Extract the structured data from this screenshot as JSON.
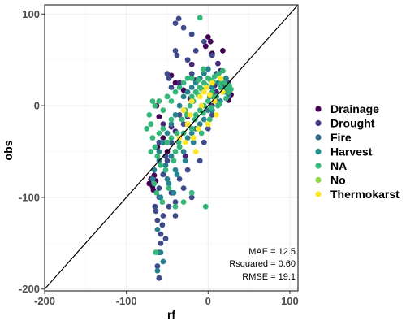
{
  "chart_data": {
    "type": "scatter",
    "xlabel": "rf",
    "ylabel": "obs",
    "xlim": [
      -200,
      110
    ],
    "ylim": [
      -202,
      110
    ],
    "x_ticks": [
      -200,
      -100,
      0,
      100
    ],
    "y_ticks": [
      -200,
      -100,
      0,
      100
    ],
    "grid": true,
    "legend_placement": "right",
    "reference_line": {
      "type": "identity",
      "slope": 1,
      "intercept": 0
    },
    "statistics": [
      "MAE = 12.5",
      "Rsquared = 0.60",
      "RMSE = 19.1"
    ],
    "series": [
      {
        "name": "Drainage",
        "color": "#440154",
        "points": [
          [
            -70,
            -80
          ],
          [
            -72,
            -85
          ],
          [
            -68,
            -88
          ],
          [
            -66,
            -76
          ],
          [
            -64,
            -82
          ],
          [
            -67,
            -92
          ],
          [
            -63,
            0
          ],
          [
            -60,
            -12
          ],
          [
            0,
            75
          ],
          [
            -3,
            65
          ],
          [
            5,
            57
          ],
          [
            3,
            70
          ],
          [
            18,
            60
          ],
          [
            28,
            12
          ],
          [
            25,
            6
          ],
          [
            -62,
            -45
          ],
          [
            -55,
            -35
          ],
          [
            -50,
            -50
          ],
          [
            -40,
            25
          ],
          [
            -45,
            33
          ],
          [
            -30,
            17
          ]
        ]
      },
      {
        "name": "Drainage",
        "color": "#482576",
        "points": [
          [
            -45,
            -23
          ],
          [
            -40,
            -28
          ],
          [
            -35,
            25
          ],
          [
            -20,
            45
          ],
          [
            -15,
            28
          ],
          [
            10,
            15
          ],
          [
            12,
            46
          ],
          [
            15,
            38
          ],
          [
            8,
            22
          ],
          [
            -30,
            -5
          ],
          [
            -28,
            -55
          ],
          [
            5,
            0
          ],
          [
            -25,
            -12
          ],
          [
            20,
            25
          ],
          [
            -55,
            -20
          ],
          [
            -22,
            8
          ]
        ]
      },
      {
        "name": "Fire",
        "color": "#3e4a89",
        "points": [
          [
            -60,
            -40
          ],
          [
            -50,
            35
          ],
          [
            -40,
            60
          ],
          [
            -38,
            55
          ],
          [
            -30,
            85
          ],
          [
            -25,
            50
          ],
          [
            -20,
            35
          ],
          [
            -15,
            60
          ],
          [
            0,
            40
          ],
          [
            5,
            55
          ],
          [
            10,
            35
          ],
          [
            15,
            30
          ],
          [
            -10,
            20
          ],
          [
            -35,
            -10
          ],
          [
            -30,
            -20
          ],
          [
            -45,
            -40
          ],
          [
            -50,
            -60
          ],
          [
            -55,
            -75
          ],
          [
            -60,
            -90
          ],
          [
            -65,
            -110
          ],
          [
            -62,
            -125
          ],
          [
            -58,
            -140
          ],
          [
            -60,
            -160
          ],
          [
            -62,
            -175
          ],
          [
            -60,
            -188
          ],
          [
            -58,
            -150
          ],
          [
            -55,
            -120
          ],
          [
            -45,
            -95
          ],
          [
            -40,
            -105
          ],
          [
            -35,
            -80
          ],
          [
            -30,
            -90
          ],
          [
            -25,
            -70
          ],
          [
            -20,
            -100
          ],
          [
            -10,
            -60
          ],
          [
            -5,
            -40
          ],
          [
            0,
            -25
          ],
          [
            5,
            -10
          ],
          [
            10,
            5
          ],
          [
            20,
            20
          ],
          [
            25,
            25
          ],
          [
            -5,
            70
          ],
          [
            -15,
            15
          ],
          [
            -40,
            90
          ],
          [
            -36,
            95
          ],
          [
            -20,
            78
          ],
          [
            -45,
            20
          ],
          [
            -48,
            30
          ],
          [
            -52,
            -55
          ],
          [
            -56,
            -130
          ],
          [
            -60,
            -100
          ],
          [
            -64,
            -115
          ],
          [
            -52,
            -145
          ],
          [
            -48,
            -110
          ],
          [
            -40,
            -120
          ]
        ]
      },
      {
        "name": "Harvest",
        "color": "#26828e",
        "points": [
          [
            -68,
            -80
          ],
          [
            -66,
            -70
          ],
          [
            -60,
            -60
          ],
          [
            -55,
            -40
          ],
          [
            -50,
            -30
          ],
          [
            -45,
            -20
          ],
          [
            -40,
            -10
          ],
          [
            -35,
            0
          ],
          [
            -30,
            10
          ],
          [
            -25,
            15
          ],
          [
            -20,
            20
          ],
          [
            -15,
            25
          ],
          [
            -10,
            30
          ],
          [
            -5,
            35
          ],
          [
            0,
            40
          ],
          [
            5,
            20
          ],
          [
            10,
            10
          ],
          [
            15,
            5
          ],
          [
            20,
            15
          ],
          [
            25,
            12
          ],
          [
            -20,
            -30
          ],
          [
            -10,
            -20
          ],
          [
            0,
            -5
          ],
          [
            -30,
            -50
          ],
          [
            -40,
            -70
          ],
          [
            -50,
            -80
          ],
          [
            -58,
            -100
          ],
          [
            -52,
            -65
          ],
          [
            -45,
            -55
          ],
          [
            -35,
            -45
          ],
          [
            -25,
            -35
          ],
          [
            -15,
            -25
          ],
          [
            -5,
            -15
          ],
          [
            5,
            -5
          ],
          [
            -60,
            -50
          ],
          [
            -48,
            -85
          ],
          [
            -42,
            -95
          ],
          [
            -38,
            -75
          ],
          [
            -28,
            -60
          ],
          [
            -18,
            -40
          ],
          [
            -8,
            0
          ],
          [
            2,
            10
          ],
          [
            12,
            25
          ],
          [
            22,
            30
          ],
          [
            -62,
            -135
          ],
          [
            -58,
            -160
          ],
          [
            -55,
            -170
          ],
          [
            -62,
            -180
          ]
        ]
      },
      {
        "name": "NA",
        "color": "#35b779",
        "points": [
          [
            -70,
            -20
          ],
          [
            -68,
            -35
          ],
          [
            -65,
            0
          ],
          [
            -60,
            5
          ],
          [
            -55,
            -5
          ],
          [
            -50,
            10
          ],
          [
            -45,
            5
          ],
          [
            -40,
            15
          ],
          [
            -35,
            20
          ],
          [
            -30,
            25
          ],
          [
            -25,
            30
          ],
          [
            -20,
            10
          ],
          [
            -15,
            15
          ],
          [
            -10,
            20
          ],
          [
            -5,
            25
          ],
          [
            0,
            30
          ],
          [
            5,
            15
          ],
          [
            10,
            10
          ],
          [
            15,
            20
          ],
          [
            20,
            25
          ],
          [
            25,
            15
          ],
          [
            -60,
            -30
          ],
          [
            -55,
            -25
          ],
          [
            -50,
            -40
          ],
          [
            -45,
            -35
          ],
          [
            -40,
            -50
          ],
          [
            -35,
            -45
          ],
          [
            -30,
            -30
          ],
          [
            -25,
            -20
          ],
          [
            -20,
            -25
          ],
          [
            -15,
            -10
          ],
          [
            -10,
            -5
          ],
          [
            -5,
            0
          ],
          [
            0,
            5
          ],
          [
            5,
            10
          ],
          [
            -65,
            -45
          ],
          [
            -62,
            -55
          ],
          [
            -58,
            -65
          ],
          [
            -52,
            -70
          ],
          [
            -48,
            -90
          ],
          [
            -42,
            -60
          ],
          [
            -38,
            -30
          ],
          [
            -32,
            -15
          ],
          [
            -28,
            -5
          ],
          [
            -22,
            0
          ],
          [
            -18,
            5
          ],
          [
            -12,
            12
          ],
          [
            -8,
            18
          ],
          [
            -2,
            22
          ],
          [
            3,
            28
          ],
          [
            8,
            32
          ],
          [
            13,
            35
          ],
          [
            18,
            38
          ],
          [
            23,
            20
          ],
          [
            28,
            18
          ],
          [
            -75,
            -25
          ],
          [
            -72,
            -10
          ],
          [
            -68,
            5
          ],
          [
            -45,
            -15
          ],
          [
            -10,
            96
          ],
          [
            -3,
            -110
          ],
          [
            -40,
            -110
          ],
          [
            -30,
            -105
          ],
          [
            -20,
            -95
          ],
          [
            -8,
            -30
          ],
          [
            2,
            -15
          ],
          [
            12,
            0
          ],
          [
            22,
            8
          ],
          [
            -70,
            -50
          ],
          [
            -66,
            -85
          ],
          [
            -63,
            -95
          ],
          [
            -56,
            -105
          ],
          [
            -64,
            -160
          ],
          [
            -6,
            40
          ],
          [
            -20,
            30
          ],
          [
            -12,
            28
          ],
          [
            6,
            26
          ],
          [
            16,
            24
          ],
          [
            26,
            22
          ],
          [
            -36,
            -40
          ],
          [
            -26,
            -10
          ],
          [
            -16,
            -15
          ],
          [
            -6,
            -8
          ],
          [
            4,
            -2
          ],
          [
            14,
            2
          ]
        ]
      },
      {
        "name": "Thermokarst",
        "color": "#fde725",
        "points": [
          [
            -30,
            -5
          ],
          [
            -25,
            -20
          ],
          [
            -20,
            5
          ],
          [
            -15,
            -50
          ],
          [
            -10,
            10
          ],
          [
            -5,
            15
          ],
          [
            0,
            -20
          ],
          [
            5,
            25
          ],
          [
            10,
            -10
          ],
          [
            15,
            30
          ],
          [
            -35,
            -35
          ],
          [
            -22,
            -10
          ],
          [
            -12,
            -25
          ],
          [
            -2,
            20
          ],
          [
            8,
            5
          ],
          [
            18,
            15
          ],
          [
            -28,
            -40
          ],
          [
            -18,
            -35
          ],
          [
            -8,
            0
          ],
          [
            2,
            12
          ]
        ]
      }
    ]
  },
  "legend": {
    "entries": [
      {
        "label": "Drainage",
        "color": "#440154"
      },
      {
        "label": "Drought",
        "color": "#443983"
      },
      {
        "label": "Fire",
        "color": "#31688e"
      },
      {
        "label": "Harvest",
        "color": "#21918c"
      },
      {
        "label": "NA",
        "color": "#35b779"
      },
      {
        "label": "No",
        "color": "#8fd744"
      },
      {
        "label": "Thermokarst",
        "color": "#fde725"
      }
    ]
  }
}
